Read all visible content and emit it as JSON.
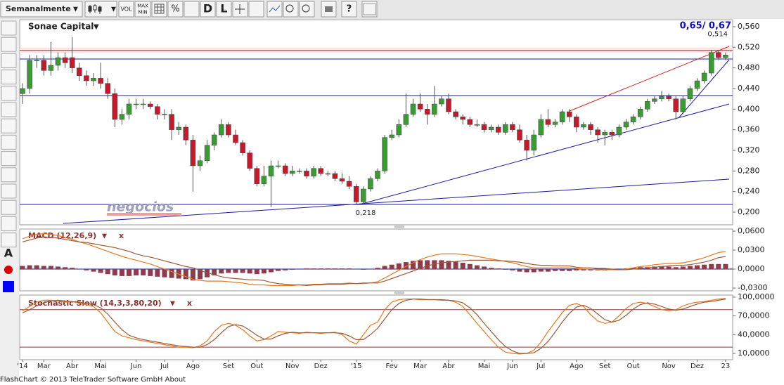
{
  "toolbar": {
    "period": "Semanalmente",
    "period_menu": "▼",
    "buttons": [
      "VOL",
      "MAX",
      "MIN",
      "%",
      "D",
      "L",
      "?"
    ]
  },
  "left_tools": [
    "A"
  ],
  "watermark": "negocios",
  "footer": "FlashChart © 2013 TeleTrader Software GmbH About",
  "chart_data": [
    {
      "type": "candlestick",
      "title": "Sonae Capital",
      "menu": "▼",
      "quote": "0,65/ 0,67",
      "categories": [
        "'14",
        null,
        null,
        "Mar",
        null,
        null,
        null,
        "Abr",
        null,
        null,
        null,
        "Mai",
        null,
        null,
        null,
        null,
        "Jun",
        null,
        null,
        null,
        "Jul",
        null,
        null,
        null,
        "Ago",
        null,
        null,
        null,
        null,
        "Set",
        null,
        null,
        null,
        "Out",
        null,
        null,
        null,
        null,
        "Nov",
        null,
        null,
        null,
        "Dez",
        null,
        null,
        null,
        null,
        "'15",
        null,
        null,
        null,
        null,
        "Fev",
        null,
        null,
        null,
        "Mar",
        null,
        null,
        null,
        "Abr",
        null,
        null,
        null,
        null,
        "Mai",
        null,
        null,
        null,
        "Jun",
        null,
        null,
        null,
        "Jul",
        null,
        null,
        null,
        null,
        "Ago",
        null,
        null,
        null,
        "Set",
        null,
        null,
        null,
        "Out",
        null,
        null,
        null,
        null,
        "Nov",
        null,
        null,
        null,
        "Dez",
        null,
        null,
        null,
        "23"
      ],
      "open": [
        0.43,
        0.44,
        0.495,
        0.495,
        0.475,
        0.485,
        0.5,
        0.5,
        0.48,
        0.465,
        0.455,
        0.46,
        0.45,
        0.43,
        0.38,
        0.39,
        0.41,
        0.41,
        0.41,
        0.405,
        0.39,
        0.39,
        0.36,
        0.365,
        0.34,
        0.29,
        0.3,
        0.33,
        0.35,
        0.37,
        0.35,
        0.335,
        0.315,
        0.285,
        0.255,
        0.27,
        0.29,
        0.29,
        0.275,
        0.28,
        0.28,
        0.27,
        0.285,
        0.275,
        0.275,
        0.265,
        0.26,
        0.25,
        0.22,
        0.245,
        0.265,
        0.28,
        0.345,
        0.35,
        0.37,
        0.39,
        0.41,
        0.4,
        0.39,
        0.41,
        0.42,
        0.395,
        0.385,
        0.38,
        0.37,
        0.37,
        0.36,
        0.365,
        0.355,
        0.37,
        0.36,
        0.34,
        0.32,
        0.35,
        0.38,
        0.37,
        0.375,
        0.395,
        0.385,
        0.365,
        0.37,
        0.36,
        0.35,
        0.355,
        0.35,
        0.365,
        0.375,
        0.385,
        0.4,
        0.415,
        0.42,
        0.425,
        0.42,
        0.395,
        0.42,
        0.44,
        0.455,
        0.47,
        0.51,
        0.5
      ],
      "high": [
        0.45,
        0.505,
        0.505,
        0.505,
        0.53,
        0.51,
        0.51,
        0.54,
        0.49,
        0.475,
        0.47,
        0.49,
        0.46,
        0.44,
        0.4,
        0.42,
        0.42,
        0.42,
        0.415,
        0.41,
        0.4,
        0.4,
        0.375,
        0.37,
        0.35,
        0.31,
        0.34,
        0.355,
        0.38,
        0.375,
        0.36,
        0.34,
        0.32,
        0.29,
        0.29,
        0.3,
        0.3,
        0.295,
        0.29,
        0.285,
        0.285,
        0.29,
        0.29,
        0.28,
        0.28,
        0.275,
        0.27,
        0.255,
        0.25,
        0.27,
        0.285,
        0.35,
        0.36,
        0.38,
        0.43,
        0.42,
        0.43,
        0.41,
        0.445,
        0.425,
        0.43,
        0.4,
        0.39,
        0.385,
        0.38,
        0.375,
        0.37,
        0.37,
        0.375,
        0.375,
        0.37,
        0.35,
        0.36,
        0.39,
        0.4,
        0.38,
        0.4,
        0.4,
        0.39,
        0.375,
        0.375,
        0.365,
        0.36,
        0.36,
        0.37,
        0.38,
        0.39,
        0.405,
        0.42,
        0.425,
        0.435,
        0.43,
        0.425,
        0.425,
        0.445,
        0.46,
        0.475,
        0.515,
        0.515,
        0.51
      ],
      "low": [
        0.41,
        0.43,
        0.48,
        0.465,
        0.465,
        0.475,
        0.48,
        0.47,
        0.455,
        0.445,
        0.445,
        0.44,
        0.42,
        0.365,
        0.37,
        0.38,
        0.4,
        0.4,
        0.4,
        0.38,
        0.38,
        0.34,
        0.35,
        0.33,
        0.24,
        0.28,
        0.295,
        0.32,
        0.345,
        0.345,
        0.33,
        0.31,
        0.28,
        0.25,
        0.25,
        0.21,
        0.285,
        0.27,
        0.27,
        0.275,
        0.265,
        0.265,
        0.27,
        0.27,
        0.26,
        0.255,
        0.245,
        0.215,
        0.215,
        0.24,
        0.26,
        0.275,
        0.34,
        0.345,
        0.365,
        0.385,
        0.395,
        0.37,
        0.385,
        0.405,
        0.39,
        0.38,
        0.37,
        0.365,
        0.365,
        0.355,
        0.355,
        0.35,
        0.35,
        0.355,
        0.335,
        0.3,
        0.31,
        0.345,
        0.365,
        0.365,
        0.37,
        0.375,
        0.355,
        0.36,
        0.35,
        0.335,
        0.33,
        0.34,
        0.345,
        0.36,
        0.37,
        0.38,
        0.395,
        0.41,
        0.415,
        0.415,
        0.38,
        0.39,
        0.415,
        0.435,
        0.45,
        0.465,
        0.495,
        0.495
      ],
      "close": [
        0.44,
        0.495,
        0.495,
        0.475,
        0.485,
        0.5,
        0.49,
        0.48,
        0.465,
        0.455,
        0.46,
        0.45,
        0.43,
        0.38,
        0.39,
        0.41,
        0.41,
        0.41,
        0.405,
        0.39,
        0.39,
        0.36,
        0.365,
        0.34,
        0.29,
        0.3,
        0.33,
        0.35,
        0.37,
        0.35,
        0.335,
        0.315,
        0.285,
        0.255,
        0.27,
        0.29,
        0.29,
        0.275,
        0.28,
        0.28,
        0.27,
        0.285,
        0.275,
        0.275,
        0.265,
        0.26,
        0.25,
        0.22,
        0.245,
        0.265,
        0.28,
        0.345,
        0.35,
        0.37,
        0.39,
        0.41,
        0.4,
        0.39,
        0.41,
        0.42,
        0.395,
        0.385,
        0.38,
        0.37,
        0.37,
        0.36,
        0.365,
        0.355,
        0.37,
        0.36,
        0.34,
        0.32,
        0.35,
        0.38,
        0.37,
        0.375,
        0.395,
        0.385,
        0.365,
        0.37,
        0.36,
        0.35,
        0.355,
        0.35,
        0.365,
        0.375,
        0.385,
        0.4,
        0.415,
        0.42,
        0.425,
        0.42,
        0.395,
        0.42,
        0.44,
        0.455,
        0.47,
        0.51,
        0.5,
        0.505
      ],
      "up_color": "#3a9b35",
      "down_color": "#c41a2c",
      "ylim": [
        0.18,
        0.57
      ],
      "yticks": [
        {
          "value": 0.56,
          "label": "0,560"
        },
        {
          "value": 0.52,
          "label": "0,520"
        },
        {
          "value": 0.48,
          "label": "0,480"
        },
        {
          "value": 0.44,
          "label": "0,440"
        },
        {
          "value": 0.4,
          "label": "0,400"
        },
        {
          "value": 0.36,
          "label": "0,360"
        },
        {
          "value": 0.32,
          "label": "0,320"
        },
        {
          "value": 0.28,
          "label": "0,280"
        },
        {
          "value": 0.24,
          "label": "0,240"
        },
        {
          "value": 0.2,
          "label": "0,200"
        }
      ],
      "annotations": [
        {
          "value": 0.514,
          "label": "0,514"
        },
        {
          "value": 0.218,
          "label": "0,218"
        }
      ]
    },
    {
      "type": "macd",
      "title": "MACD (12,26,9)",
      "menu": "▼",
      "close": "x",
      "histogram": {
        "color": "#8e3b4b",
        "values": [
          0.005,
          0.006,
          0.006,
          0.005,
          0.005,
          0.004,
          0.003,
          0.002,
          0.0,
          -0.002,
          -0.004,
          -0.006,
          -0.008,
          -0.01,
          -0.011,
          -0.011,
          -0.01,
          -0.01,
          -0.011,
          -0.012,
          -0.013,
          -0.014,
          -0.015,
          -0.016,
          -0.018,
          -0.016,
          -0.013,
          -0.01,
          -0.007,
          -0.006,
          -0.006,
          -0.006,
          -0.007,
          -0.008,
          -0.007,
          -0.005,
          -0.003,
          -0.002,
          -0.001,
          0.0,
          0.001,
          0.001,
          0.001,
          0.001,
          0.001,
          0.001,
          0.001,
          0.0,
          -0.001,
          0.0,
          0.002,
          0.005,
          0.007,
          0.009,
          0.011,
          0.013,
          0.014,
          0.014,
          0.014,
          0.014,
          0.013,
          0.012,
          0.01,
          0.008,
          0.006,
          0.004,
          0.002,
          0.001,
          -0.001,
          -0.002,
          -0.004,
          -0.005,
          -0.005,
          -0.004,
          -0.004,
          -0.003,
          -0.003,
          -0.003,
          -0.002,
          -0.002,
          -0.002,
          -0.002,
          -0.002,
          -0.001,
          0.0,
          0.001,
          0.002,
          0.003,
          0.003,
          0.004,
          0.004,
          0.004,
          0.003,
          0.004,
          0.005,
          0.006,
          0.007,
          0.008,
          0.008,
          0.008
        ]
      },
      "series": [
        {
          "color": "#e8781e",
          "values": [
            0.048,
            0.052,
            0.055,
            0.056,
            0.055,
            0.053,
            0.05,
            0.047,
            0.043,
            0.04,
            0.036,
            0.032,
            0.028,
            0.024,
            0.02,
            0.017,
            0.014,
            0.011,
            0.008,
            0.004,
            0.0,
            -0.004,
            -0.008,
            -0.012,
            -0.016,
            -0.018,
            -0.019,
            -0.019,
            -0.019,
            -0.02,
            -0.021,
            -0.022,
            -0.024,
            -0.025,
            -0.025,
            -0.026,
            -0.026,
            -0.026,
            -0.026,
            -0.025,
            -0.025,
            -0.024,
            -0.024,
            -0.023,
            -0.023,
            -0.023,
            -0.022,
            -0.023,
            -0.023,
            -0.022,
            -0.02,
            -0.014,
            -0.008,
            -0.002,
            0.004,
            0.01,
            0.015,
            0.019,
            0.022,
            0.024,
            0.024,
            0.024,
            0.023,
            0.022,
            0.02,
            0.018,
            0.016,
            0.014,
            0.012,
            0.01,
            0.007,
            0.004,
            0.002,
            0.002,
            0.002,
            0.002,
            0.002,
            0.002,
            0.001,
            0.0,
            0.0,
            -0.001,
            -0.001,
            -0.001,
            -0.001,
            0.0,
            0.002,
            0.004,
            0.005,
            0.007,
            0.008,
            0.009,
            0.009,
            0.01,
            0.012,
            0.015,
            0.018,
            0.022,
            0.026,
            0.028
          ]
        },
        {
          "color": "#9a5a3a",
          "values": [
            0.043,
            0.046,
            0.049,
            0.051,
            0.05,
            0.049,
            0.047,
            0.045,
            0.043,
            0.042,
            0.04,
            0.038,
            0.036,
            0.034,
            0.031,
            0.028,
            0.024,
            0.021,
            0.019,
            0.016,
            0.013,
            0.01,
            0.007,
            0.004,
            0.002,
            -0.002,
            -0.006,
            -0.009,
            -0.012,
            -0.014,
            -0.015,
            -0.016,
            -0.017,
            -0.017,
            -0.018,
            -0.021,
            -0.023,
            -0.024,
            -0.025,
            -0.025,
            -0.026,
            -0.025,
            -0.025,
            -0.024,
            -0.024,
            -0.024,
            -0.023,
            -0.023,
            -0.022,
            -0.022,
            -0.022,
            -0.019,
            -0.015,
            -0.011,
            -0.007,
            -0.003,
            0.001,
            0.005,
            0.008,
            0.01,
            0.011,
            0.012,
            0.013,
            0.014,
            0.014,
            0.014,
            0.014,
            0.013,
            0.013,
            0.012,
            0.011,
            0.009,
            0.007,
            0.006,
            0.006,
            0.005,
            0.005,
            0.005,
            0.003,
            0.002,
            0.002,
            0.001,
            0.001,
            0.0,
            -0.001,
            -0.001,
            0.0,
            0.001,
            0.002,
            0.003,
            0.004,
            0.005,
            0.006,
            0.006,
            0.007,
            0.009,
            0.011,
            0.014,
            0.018,
            0.02
          ]
        }
      ],
      "ylim": [
        -0.033,
        0.063
      ],
      "yticks": [
        {
          "value": 0.06,
          "label": "0,0600"
        },
        {
          "value": 0.03,
          "label": "0,0300"
        },
        {
          "value": 0,
          "label": "0,0000"
        },
        {
          "value": -0.03,
          "label": "-0,0300"
        }
      ]
    },
    {
      "type": "line",
      "title": "Stochastic Slow (14,3,3,80,20)",
      "menu": "▼",
      "close": "x",
      "levels": [
        80,
        20
      ],
      "level_color": "#8b3a3a",
      "series": [
        {
          "color": "#e8781e",
          "values": [
            78,
            85,
            92,
            95,
            95,
            94,
            92,
            93,
            90,
            88,
            85,
            75,
            60,
            45,
            38,
            35,
            32,
            30,
            28,
            26,
            24,
            22,
            20,
            20,
            19,
            22,
            30,
            45,
            55,
            58,
            55,
            48,
            38,
            30,
            32,
            38,
            45,
            44,
            43,
            42,
            44,
            43,
            42,
            43,
            44,
            40,
            30,
            25,
            40,
            55,
            60,
            80,
            92,
            96,
            97,
            97,
            96,
            96,
            96,
            95,
            95,
            92,
            85,
            72,
            58,
            45,
            32,
            20,
            12,
            10,
            9,
            10,
            15,
            28,
            45,
            60,
            75,
            87,
            90,
            85,
            72,
            62,
            58,
            60,
            70,
            82,
            90,
            92,
            90,
            85,
            80,
            78,
            80,
            86,
            90,
            92,
            93,
            95,
            97,
            98
          ]
        },
        {
          "color": "#9a5a3a",
          "values": [
            75,
            80,
            86,
            91,
            94,
            95,
            94,
            93,
            92,
            90,
            88,
            83,
            73,
            60,
            48,
            39,
            35,
            32,
            30,
            28,
            26,
            24,
            22,
            21,
            20,
            20,
            24,
            32,
            43,
            53,
            56,
            54,
            47,
            39,
            33,
            33,
            38,
            42,
            44,
            43,
            43,
            43,
            43,
            43,
            43,
            42,
            38,
            32,
            32,
            40,
            50,
            65,
            80,
            90,
            95,
            97,
            97,
            96,
            96,
            96,
            95,
            94,
            91,
            83,
            72,
            58,
            45,
            32,
            21,
            14,
            10,
            10,
            11,
            18,
            29,
            44,
            60,
            74,
            84,
            87,
            82,
            73,
            64,
            60,
            63,
            71,
            81,
            88,
            91,
            89,
            85,
            81,
            79,
            81,
            85,
            89,
            92,
            93,
            95,
            97
          ]
        }
      ],
      "ylim": [
        0,
        103
      ],
      "yticks": [
        {
          "value": 100,
          "label": "100,0000"
        },
        {
          "value": 70,
          "label": "70,0000"
        },
        {
          "value": 40,
          "label": "40,0000"
        },
        {
          "value": 10,
          "label": "10,0000"
        }
      ]
    }
  ]
}
